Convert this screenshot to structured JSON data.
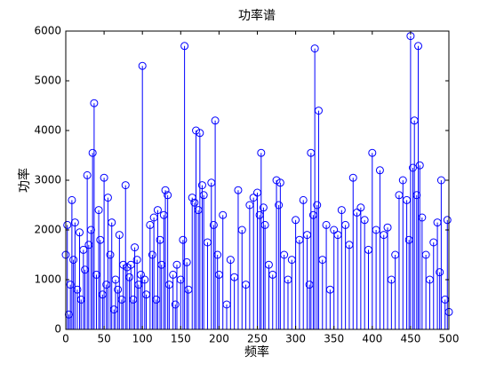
{
  "chart_data": {
    "type": "stem",
    "title": "功率谱",
    "xlabel": "频率",
    "ylabel": "功率",
    "x": [
      0,
      2,
      4,
      6,
      8,
      10,
      12,
      15,
      18,
      20,
      23,
      25,
      28,
      30,
      33,
      35,
      37,
      40,
      43,
      45,
      48,
      50,
      53,
      55,
      58,
      60,
      63,
      65,
      68,
      70,
      73,
      75,
      78,
      80,
      83,
      85,
      88,
      90,
      93,
      95,
      98,
      100,
      103,
      105,
      110,
      113,
      115,
      118,
      120,
      123,
      125,
      128,
      130,
      133,
      135,
      140,
      143,
      145,
      150,
      153,
      155,
      158,
      160,
      165,
      168,
      170,
      173,
      175,
      178,
      180,
      185,
      190,
      193,
      195,
      198,
      200,
      205,
      210,
      215,
      220,
      225,
      230,
      235,
      240,
      245,
      250,
      253,
      255,
      258,
      260,
      265,
      270,
      275,
      278,
      280,
      285,
      290,
      295,
      300,
      305,
      310,
      315,
      318,
      320,
      323,
      325,
      328,
      330,
      335,
      340,
      345,
      350,
      355,
      360,
      365,
      370,
      375,
      380,
      385,
      390,
      395,
      400,
      405,
      410,
      415,
      420,
      425,
      430,
      435,
      440,
      445,
      448,
      450,
      453,
      455,
      458,
      460,
      462,
      465,
      470,
      475,
      480,
      485,
      488,
      490,
      495,
      498,
      500
    ],
    "values": [
      1500,
      2100,
      300,
      900,
      2600,
      1400,
      2150,
      800,
      1950,
      600,
      1600,
      1200,
      3100,
      1700,
      2000,
      3550,
      4550,
      1100,
      2400,
      1800,
      700,
      3050,
      900,
      2650,
      1500,
      2150,
      400,
      1000,
      800,
      1900,
      600,
      1300,
      2900,
      1250,
      1050,
      1300,
      600,
      1650,
      1400,
      900,
      1100,
      5300,
      1000,
      700,
      2100,
      1500,
      2250,
      600,
      2400,
      1800,
      1300,
      2300,
      2800,
      2700,
      900,
      1100,
      500,
      1300,
      1000,
      1800,
      5700,
      1350,
      800,
      2650,
      2550,
      4000,
      2400,
      3950,
      2900,
      2700,
      1750,
      2950,
      2100,
      4200,
      1500,
      1100,
      2300,
      500,
      1400,
      1050,
      2800,
      2000,
      900,
      2500,
      2650,
      2750,
      2300,
      3550,
      2450,
      2100,
      1300,
      1100,
      3000,
      2500,
      2950,
      1500,
      1000,
      1400,
      2200,
      1800,
      2600,
      1900,
      900,
      3550,
      2300,
      5650,
      2500,
      4400,
      1400,
      2100,
      800,
      2000,
      1900,
      2400,
      2100,
      1700,
      3050,
      2350,
      2450,
      2200,
      1600,
      3550,
      2000,
      3200,
      1900,
      2050,
      1000,
      1500,
      2700,
      3000,
      2600,
      1800,
      5900,
      3250,
      4200,
      2700,
      5700,
      3300,
      2250,
      1500,
      1000,
      1750,
      2150,
      1150,
      3000,
      600,
      2200,
      350
    ],
    "color": "#0000ff",
    "xlim": [
      0,
      500
    ],
    "xticks": [
      0,
      50,
      100,
      150,
      200,
      250,
      300,
      350,
      400,
      450,
      500
    ],
    "ylim": [
      0,
      6000
    ],
    "yticks": [
      0,
      1000,
      2000,
      3000,
      4000,
      5000,
      6000
    ]
  }
}
